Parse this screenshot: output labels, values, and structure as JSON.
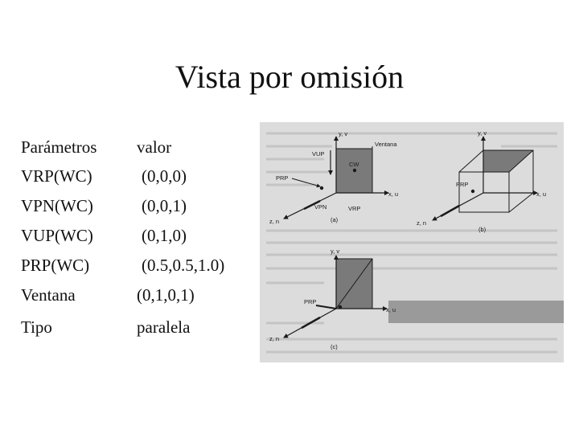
{
  "title": "Vista por omisión",
  "table": {
    "header": {
      "name": "Parámetros",
      "value": "valor"
    },
    "rows": [
      {
        "name": "VRP(WC)",
        "value": "(0,0,0)"
      },
      {
        "name": "VPN(WC)",
        "value": "(0,0,1)"
      },
      {
        "name": "VUP(WC)",
        "value": "(0,1,0)"
      },
      {
        "name": "PRP(WC)",
        "value": "(0.5,0.5,1.0)"
      },
      {
        "name": "Ventana",
        "value": "(0,1,0,1)"
      },
      {
        "name": "Tipo",
        "value": "paralela"
      }
    ]
  },
  "figure": {
    "a": {
      "yv": "y, v",
      "vup": "VUP",
      "ventana": "Ventana",
      "cw": "CW",
      "prp": "PRP",
      "xu": "x, u",
      "zn": "z, n",
      "vpn": "VPN",
      "vrp": "VRP",
      "caption": "(a)"
    },
    "b": {
      "yv": "y, v",
      "prp": "PRP",
      "xu": "x, u",
      "zn": "z, n",
      "caption": "(b)"
    },
    "c": {
      "yv": "y, v",
      "prp": "PRP",
      "xu": "x, u",
      "zn": "z, n",
      "caption": "(c)"
    }
  }
}
